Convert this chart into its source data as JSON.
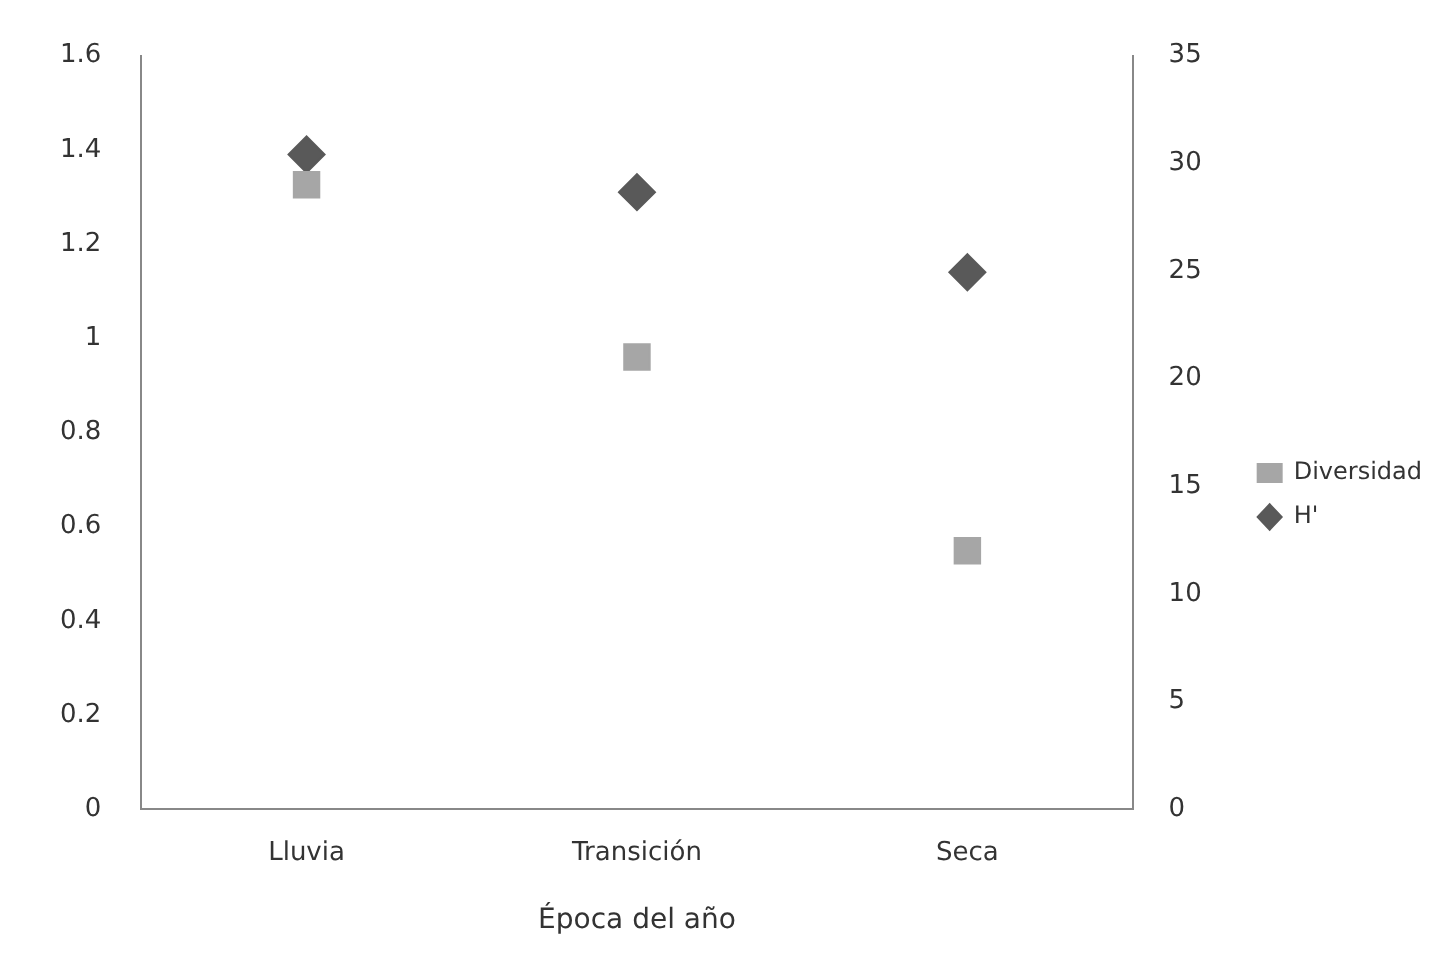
{
  "chart_data": {
    "type": "scatter",
    "xlabel": "Época del año",
    "categories": [
      "Lluvia",
      "Transición",
      "Seca"
    ],
    "series": [
      {
        "name": "Diversidad",
        "color": "#a6a6a6",
        "marker": "square",
        "axis": "y2",
        "values": [
          29,
          21,
          12
        ]
      },
      {
        "name": "H'",
        "color": "#595959",
        "marker": "diamond",
        "values": [
          1.39,
          1.31,
          1.14
        ]
      }
    ],
    "ylim": [
      0,
      1.6
    ],
    "yticks": [
      0,
      0.2,
      0.4,
      0.6,
      0.8,
      1,
      1.2,
      1.4,
      1.6
    ],
    "y2lim": [
      0,
      35
    ],
    "y2ticks": [
      0,
      5,
      10,
      15,
      20,
      25,
      30,
      35
    ],
    "grid": false,
    "legend": "right"
  }
}
